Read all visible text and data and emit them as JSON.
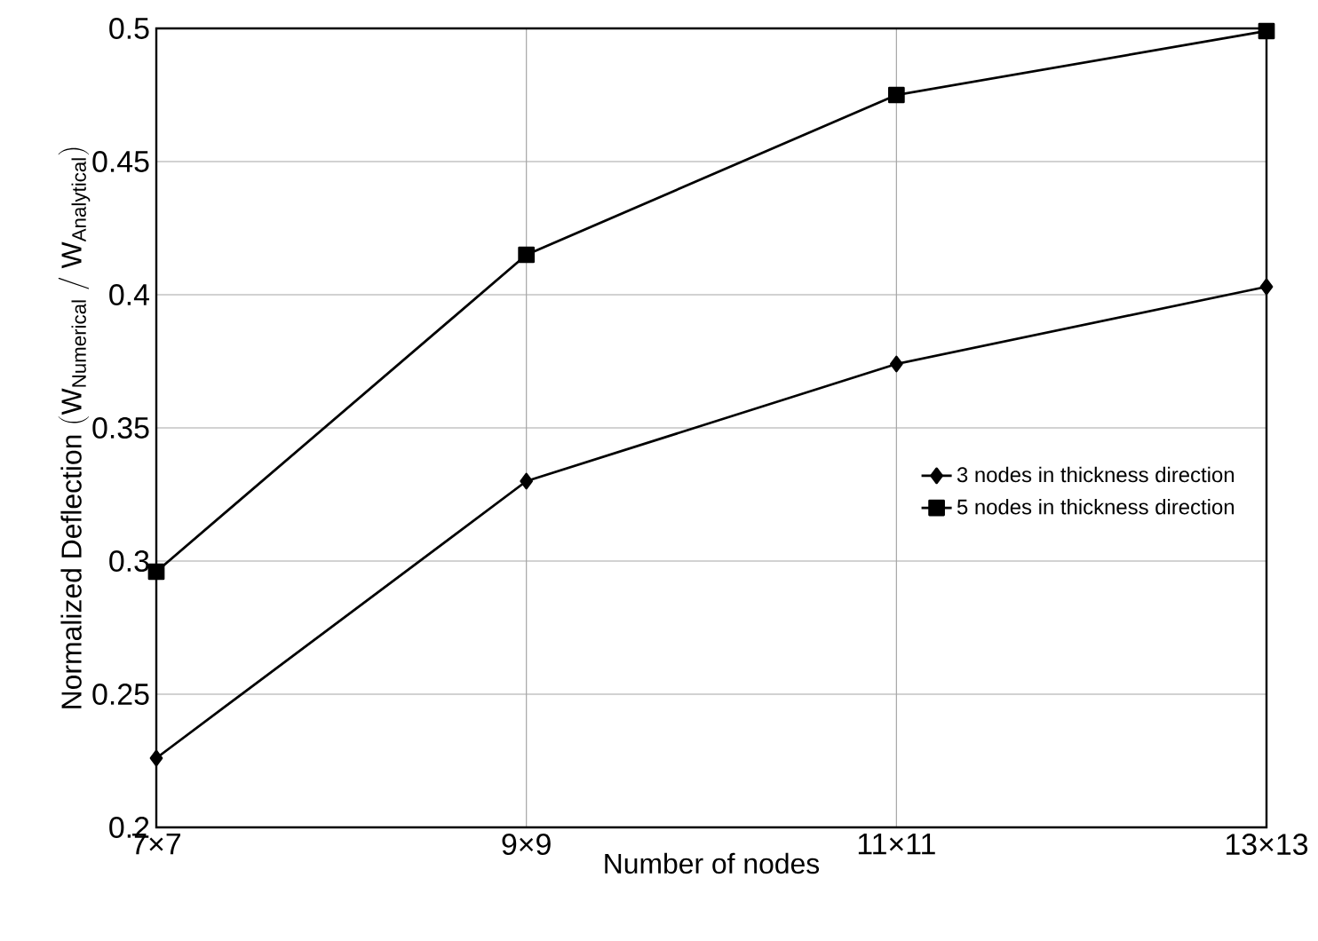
{
  "chart_data": {
    "type": "line",
    "xlabel": "Number of nodes",
    "ylabel": "\\mathrm{Normalized\\ Deflection\\ (W_{Numerical}\\ /\\ W_{Analytical})}",
    "categories": [
      "7×7",
      "9×9",
      "11×11",
      "13×13"
    ],
    "series": [
      {
        "name": "3 nodes in thickness direction",
        "color": "#000000",
        "marker": "diamond",
        "values": [
          0.226,
          0.33,
          0.374,
          0.403
        ]
      },
      {
        "name": "5 nodes in thickness direction",
        "color": "#000000",
        "marker": "square",
        "values": [
          0.296,
          0.415,
          0.475,
          0.499
        ]
      }
    ],
    "ylim": [
      0.2,
      0.5
    ],
    "yticks": [
      0.2,
      0.25,
      0.3,
      0.35,
      0.4,
      0.45,
      0.5
    ],
    "grid": true,
    "legend": "right",
    "line_style": "solid"
  }
}
